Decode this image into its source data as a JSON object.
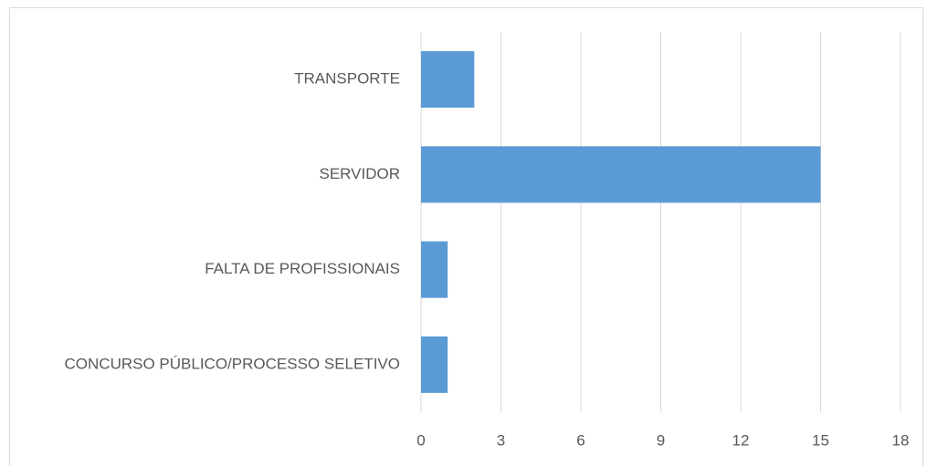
{
  "chart_data": {
    "type": "hbar",
    "categories": [
      "TRANSPORTE",
      "SERVIDOR",
      "FALTA DE PROFISSIONAIS",
      "CONCURSO PÚBLICO/PROCESSO SELETIVO"
    ],
    "values": [
      2,
      15,
      1,
      1
    ],
    "color": "#5b9bd5",
    "xlim": [
      0,
      18
    ],
    "xticks": [
      0,
      3,
      6,
      9,
      12,
      15,
      18
    ],
    "grid": true
  }
}
